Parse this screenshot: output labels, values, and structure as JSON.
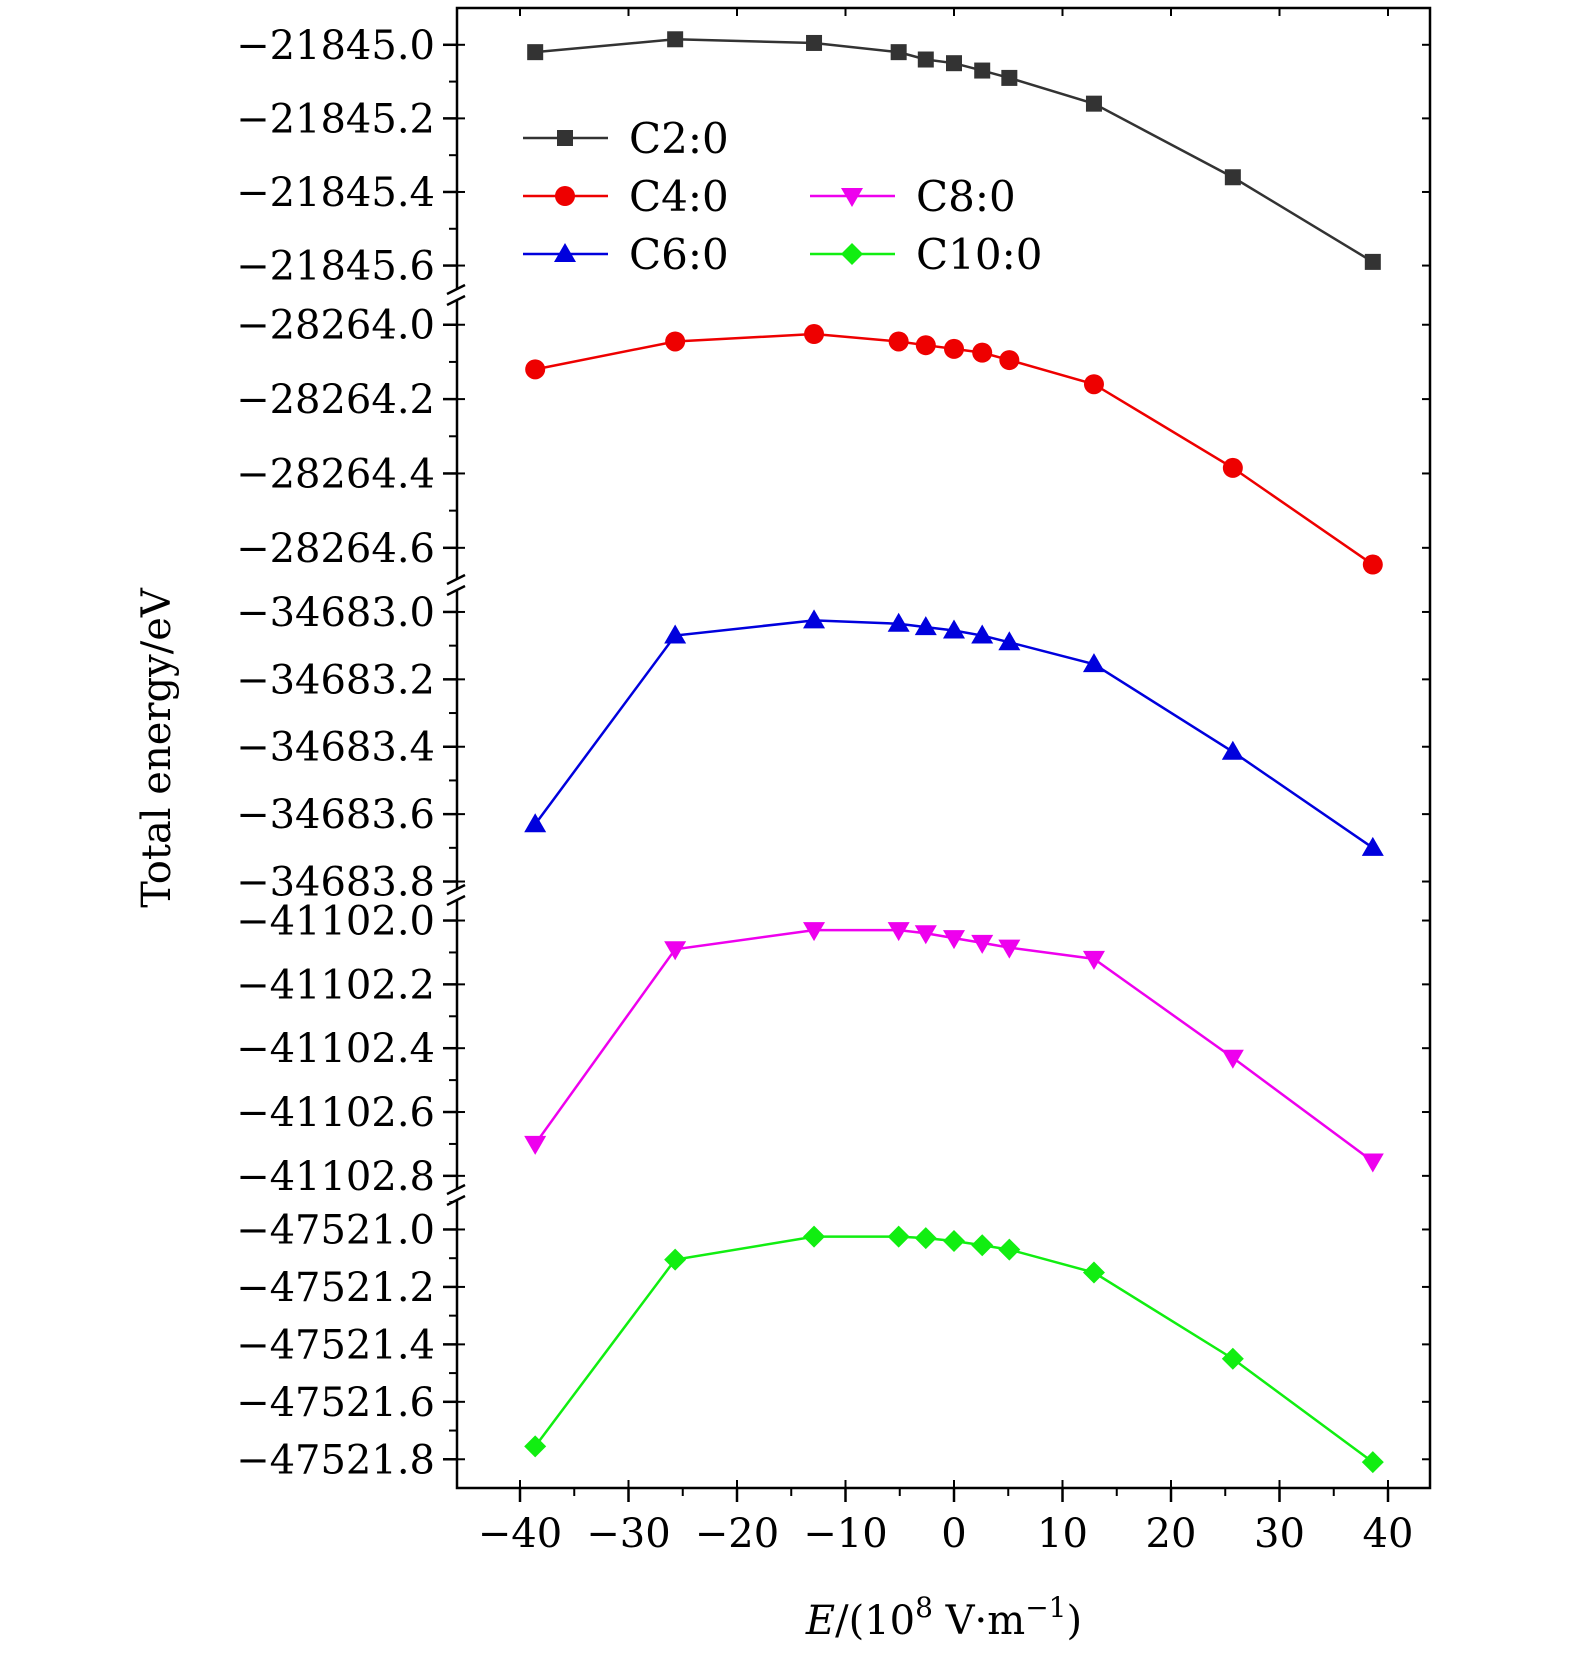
{
  "chart_data": {
    "type": "line",
    "layout": "broken-axis-stacked-panels",
    "title": "",
    "xlabel": "E/(10^8 V·m^-1)",
    "xlabel_parts": {
      "var": "E",
      "open": "/(10",
      "exp": "8",
      "mid": " V·m",
      "exp2": "−1",
      "close": ")"
    },
    "ylabel": "Total energy/eV",
    "xlim": [
      -45,
      45
    ],
    "xticks": [
      -40,
      -30,
      -20,
      -10,
      0,
      10,
      20,
      30,
      40
    ],
    "xtick_labels": [
      "−40",
      "−30",
      "−20",
      "−10",
      "0",
      "10",
      "20",
      "30",
      "40"
    ],
    "x": [
      -38.6,
      -25.7,
      -12.9,
      -5.1,
      -2.6,
      0,
      2.6,
      5.1,
      12.9,
      25.7,
      38.6
    ],
    "series": [
      {
        "name": "C2:0",
        "color": "#333333",
        "marker": "square",
        "values": [
          -21845.02,
          -21844.985,
          -21844.995,
          -21845.02,
          -21845.04,
          -21845.05,
          -21845.07,
          -21845.09,
          -21845.16,
          -21845.36,
          -21845.59
        ],
        "ylim": [
          -21845.68,
          -21844.9
        ],
        "yticks": [
          -21845.0,
          -21845.2,
          -21845.4,
          -21845.6
        ],
        "ytick_labels": [
          "−21845.0",
          "−21845.2",
          "−21845.4",
          "−21845.6"
        ]
      },
      {
        "name": "C4:0",
        "color": "#ee0000",
        "marker": "circle",
        "values": [
          -28264.12,
          -28264.045,
          -28264.025,
          -28264.045,
          -28264.055,
          -28264.065,
          -28264.075,
          -28264.095,
          -28264.16,
          -28264.385,
          -28264.645
        ],
        "ylim": [
          -28264.7,
          -28263.92
        ],
        "yticks": [
          -28264.0,
          -28264.2,
          -28264.4,
          -28264.6
        ],
        "ytick_labels": [
          "−28264.0",
          "−28264.2",
          "−28264.4",
          "−28264.6"
        ]
      },
      {
        "name": "C6:0",
        "color": "#0000dd",
        "marker": "triangle-up",
        "values": [
          -34683.63,
          -34683.07,
          -34683.025,
          -34683.035,
          -34683.045,
          -34683.055,
          -34683.07,
          -34683.09,
          -34683.155,
          -34683.415,
          -34683.7
        ],
        "ylim": [
          -34683.84,
          -34682.92
        ],
        "yticks": [
          -34683.0,
          -34683.2,
          -34683.4,
          -34683.6,
          -34683.8
        ],
        "ytick_labels": [
          "−34683.0",
          "−34683.2",
          "−34683.4",
          "−34683.6",
          "−34683.8"
        ]
      },
      {
        "name": "C8:0",
        "color": "#ee00ee",
        "marker": "triangle-down",
        "values": [
          -41102.7,
          -41102.09,
          -41102.03,
          -41102.03,
          -41102.04,
          -41102.055,
          -41102.07,
          -41102.085,
          -41102.12,
          -41102.43,
          -41102.755
        ],
        "ylim": [
          -41102.86,
          -41101.92
        ],
        "yticks": [
          -41102.0,
          -41102.2,
          -41102.4,
          -41102.6,
          -41102.8
        ],
        "ytick_labels": [
          "−41102.0",
          "−41102.2",
          "−41102.4",
          "−41102.6",
          "−41102.8"
        ]
      },
      {
        "name": "C10:0",
        "color": "#11ee11",
        "marker": "diamond",
        "values": [
          -47521.755,
          -47521.105,
          -47521.025,
          -47521.025,
          -47521.03,
          -47521.04,
          -47521.055,
          -47521.07,
          -47521.15,
          -47521.45,
          -47521.81
        ],
        "ylim": [
          -47521.9,
          -47520.88
        ],
        "yticks": [
          -47521.0,
          -47521.2,
          -47521.4,
          -47521.6,
          -47521.8
        ],
        "ytick_labels": [
          "−47521.0",
          "−47521.2",
          "−47521.4",
          "−47521.6",
          "−47521.8"
        ]
      }
    ],
    "legend": {
      "placement": "top-left",
      "columns": 2,
      "entries": [
        "C2:0",
        "C4:0",
        "C6:0",
        "C8:0",
        "C10:0"
      ]
    }
  }
}
